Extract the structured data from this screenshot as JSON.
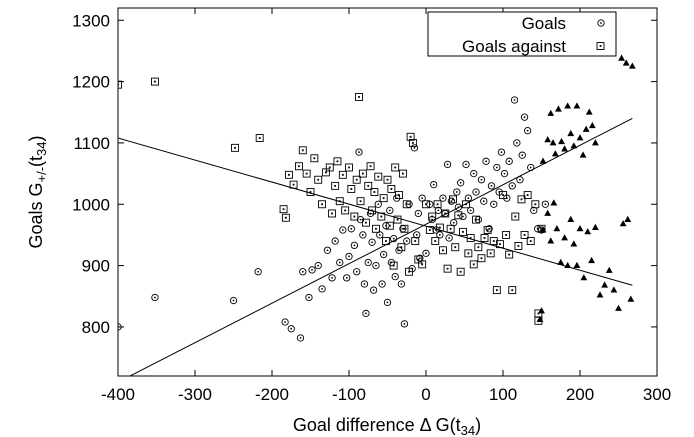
{
  "chart_data": {
    "type": "scatter",
    "xlabel": "Goal difference Δ G(t",
    "xlabel_sub": "34",
    "xlabel_end": ")",
    "ylabel": "Goals G",
    "ylabel_sup": "+/-",
    "ylabel_mid": "(t",
    "ylabel_sub": "34",
    "ylabel_end": ")",
    "xlim": [
      -400,
      300
    ],
    "ylim": [
      720,
      1320
    ],
    "xticks": [
      -400,
      -300,
      -200,
      -100,
      0,
      100,
      200,
      300
    ],
    "yticks": [
      800,
      900,
      1000,
      1100,
      1200,
      1300
    ],
    "legend_position": "top-right",
    "legend": [
      "Goals",
      "Goals against"
    ],
    "grid": false,
    "fit_lines": [
      {
        "x": [
          -400,
          268
        ],
        "y": [
          710,
          1140
        ]
      },
      {
        "x": [
          -400,
          268
        ],
        "y": [
          1108,
          868
        ]
      }
    ],
    "series": [
      {
        "name": "Goals",
        "marker": "circle",
        "points": [
          [
            -400,
            800
          ],
          [
            -352,
            848
          ],
          [
            -250,
            843
          ],
          [
            -218,
            890
          ],
          [
            -183,
            808
          ],
          [
            -175,
            797
          ],
          [
            -163,
            782
          ],
          [
            -160,
            890
          ],
          [
            -152,
            848
          ],
          [
            -148,
            893
          ],
          [
            -140,
            900
          ],
          [
            -135,
            862
          ],
          [
            -128,
            925
          ],
          [
            -122,
            880
          ],
          [
            -118,
            940
          ],
          [
            -112,
            905
          ],
          [
            -108,
            958
          ],
          [
            -103,
            880
          ],
          [
            -100,
            915
          ],
          [
            -97,
            960
          ],
          [
            -93,
            933
          ],
          [
            -90,
            890
          ],
          [
            -87,
            1085
          ],
          [
            -85,
            975
          ],
          [
            -82,
            950
          ],
          [
            -80,
            870
          ],
          [
            -78,
            822
          ],
          [
            -75,
            905
          ],
          [
            -72,
            985
          ],
          [
            -70,
            938
          ],
          [
            -68,
            860
          ],
          [
            -65,
            900
          ],
          [
            -62,
            1000
          ],
          [
            -60,
            950
          ],
          [
            -57,
            870
          ],
          [
            -55,
            918
          ],
          [
            -52,
            965
          ],
          [
            -50,
            840
          ],
          [
            -47,
            990
          ],
          [
            -45,
            905
          ],
          [
            -42,
            944
          ],
          [
            -40,
            882
          ],
          [
            -38,
            1010
          ],
          [
            -35,
            925
          ],
          [
            -32,
            870
          ],
          [
            -30,
            960
          ],
          [
            -28,
            805
          ],
          [
            -25,
            940
          ],
          [
            -22,
            1000
          ],
          [
            -18,
            895
          ],
          [
            -15,
            1092
          ],
          [
            -12,
            950
          ],
          [
            -10,
            985
          ],
          [
            -8,
            912
          ],
          [
            -5,
            1010
          ],
          [
            0,
            920
          ],
          [
            5,
            1000
          ],
          [
            8,
            975
          ],
          [
            10,
            1032
          ],
          [
            13,
            958
          ],
          [
            16,
            990
          ],
          [
            18,
            950
          ],
          [
            22,
            1010
          ],
          [
            25,
            985
          ],
          [
            28,
            1065
          ],
          [
            30,
            945
          ],
          [
            33,
            1005
          ],
          [
            36,
            970
          ],
          [
            40,
            1020
          ],
          [
            42,
            995
          ],
          [
            45,
            1035
          ],
          [
            48,
            980
          ],
          [
            52,
            1065
          ],
          [
            55,
            1010
          ],
          [
            58,
            990
          ],
          [
            62,
            1050
          ],
          [
            65,
            1020
          ],
          [
            68,
            975
          ],
          [
            72,
            1040
          ],
          [
            75,
            1005
          ],
          [
            78,
            1070
          ],
          [
            82,
            960
          ],
          [
            85,
            1030
          ],
          [
            88,
            1000
          ],
          [
            92,
            1060
          ],
          [
            95,
            1020
          ],
          [
            98,
            1085
          ],
          [
            102,
            1050
          ],
          [
            105,
            1010
          ],
          [
            108,
            1070
          ],
          [
            112,
            1030
          ],
          [
            115,
            1170
          ],
          [
            118,
            1100
          ],
          [
            122,
            1040
          ],
          [
            125,
            1080
          ],
          [
            128,
            1142
          ],
          [
            132,
            1120
          ],
          [
            136,
            1060
          ],
          [
            140,
            990
          ],
          [
            145,
            960
          ],
          [
            150,
            958
          ],
          [
            155,
            1000
          ]
        ]
      },
      {
        "name": "Goals against",
        "marker": "square",
        "points": [
          [
            -400,
            1195
          ],
          [
            -352,
            1200
          ],
          [
            -248,
            1092
          ],
          [
            -216,
            1108
          ],
          [
            -185,
            992
          ],
          [
            -182,
            978
          ],
          [
            -178,
            1048
          ],
          [
            -172,
            1032
          ],
          [
            -165,
            1062
          ],
          [
            -160,
            1088
          ],
          [
            -155,
            1050
          ],
          [
            -150,
            1020
          ],
          [
            -145,
            1075
          ],
          [
            -140,
            1040
          ],
          [
            -135,
            1000
          ],
          [
            -130,
            1052
          ],
          [
            -125,
            1060
          ],
          [
            -122,
            985
          ],
          [
            -118,
            1030
          ],
          [
            -115,
            1070
          ],
          [
            -112,
            1005
          ],
          [
            -108,
            1048
          ],
          [
            -105,
            990
          ],
          [
            -100,
            1060
          ],
          [
            -97,
            1025
          ],
          [
            -93,
            980
          ],
          [
            -90,
            1040
          ],
          [
            -87,
            1175
          ],
          [
            -85,
            1005
          ],
          [
            -82,
            1050
          ],
          [
            -78,
            970
          ],
          [
            -75,
            1030
          ],
          [
            -72,
            1062
          ],
          [
            -70,
            990
          ],
          [
            -67,
            1020
          ],
          [
            -65,
            960
          ],
          [
            -62,
            1045
          ],
          [
            -58,
            980
          ],
          [
            -55,
            1010
          ],
          [
            -52,
            940
          ],
          [
            -50,
            1040
          ],
          [
            -47,
            965
          ],
          [
            -45,
            1025
          ],
          [
            -42,
            900
          ],
          [
            -40,
            1060
          ],
          [
            -37,
            975
          ],
          [
            -35,
            1015
          ],
          [
            -32,
            930
          ],
          [
            -30,
            1050
          ],
          [
            -28,
            960
          ],
          [
            -25,
            1000
          ],
          [
            -22,
            890
          ],
          [
            -20,
            1110
          ],
          [
            -17,
            1100
          ],
          [
            -14,
            940
          ],
          [
            -10,
            910
          ],
          [
            -5,
            902
          ],
          [
            0,
            1000
          ],
          [
            5,
            958
          ],
          [
            8,
            980
          ],
          [
            12,
            940
          ],
          [
            15,
            1000
          ],
          [
            18,
            962
          ],
          [
            22,
            925
          ],
          [
            25,
            985
          ],
          [
            28,
            895
          ],
          [
            32,
            960
          ],
          [
            35,
            1008
          ],
          [
            38,
            930
          ],
          [
            42,
            982
          ],
          [
            45,
            890
          ],
          [
            48,
            955
          ],
          [
            52,
            1000
          ],
          [
            55,
            920
          ],
          [
            58,
            945
          ],
          [
            62,
            902
          ],
          [
            65,
            975
          ],
          [
            68,
            930
          ],
          [
            72,
            912
          ],
          [
            76,
            945
          ],
          [
            80,
            958
          ],
          [
            84,
            920
          ],
          [
            88,
            940
          ],
          [
            92,
            860
          ],
          [
            96,
            935
          ],
          [
            100,
            1015
          ],
          [
            104,
            950
          ],
          [
            108,
            918
          ],
          [
            112,
            860
          ],
          [
            116,
            980
          ],
          [
            120,
            932
          ],
          [
            124,
            1008
          ],
          [
            128,
            950
          ],
          [
            132,
            1015
          ],
          [
            136,
            940
          ],
          [
            142,
            1000
          ],
          [
            146,
            822
          ],
          [
            146,
            810
          ],
          [
            150,
            960
          ]
        ]
      },
      {
        "name": "",
        "marker": "triangle",
        "points": [
          [
            148,
            812
          ],
          [
            150,
            826
          ],
          [
            152,
            1070
          ],
          [
            158,
            1105
          ],
          [
            162,
            1148
          ],
          [
            165,
            1100
          ],
          [
            168,
            1082
          ],
          [
            172,
            1155
          ],
          [
            176,
            1102
          ],
          [
            180,
            1090
          ],
          [
            184,
            1160
          ],
          [
            188,
            1115
          ],
          [
            192,
            1095
          ],
          [
            196,
            1160
          ],
          [
            200,
            1108
          ],
          [
            204,
            1080
          ],
          [
            208,
            1122
          ],
          [
            212,
            1150
          ],
          [
            216,
            1128
          ],
          [
            220,
            1100
          ],
          [
            254,
            1238
          ],
          [
            260,
            1230
          ],
          [
            268,
            1225
          ],
          [
            152,
            958
          ],
          [
            158,
            985
          ],
          [
            162,
            940
          ],
          [
            166,
            1002
          ],
          [
            170,
            960
          ],
          [
            175,
            905
          ],
          [
            180,
            945
          ],
          [
            184,
            900
          ],
          [
            188,
            975
          ],
          [
            192,
            935
          ],
          [
            196,
            900
          ],
          [
            200,
            960
          ],
          [
            205,
            880
          ],
          [
            210,
            955
          ],
          [
            215,
            908
          ],
          [
            220,
            962
          ],
          [
            226,
            852
          ],
          [
            232,
            868
          ],
          [
            238,
            892
          ],
          [
            244,
            860
          ],
          [
            250,
            830
          ],
          [
            256,
            968
          ],
          [
            262,
            975
          ],
          [
            266,
            845
          ]
        ]
      }
    ]
  }
}
